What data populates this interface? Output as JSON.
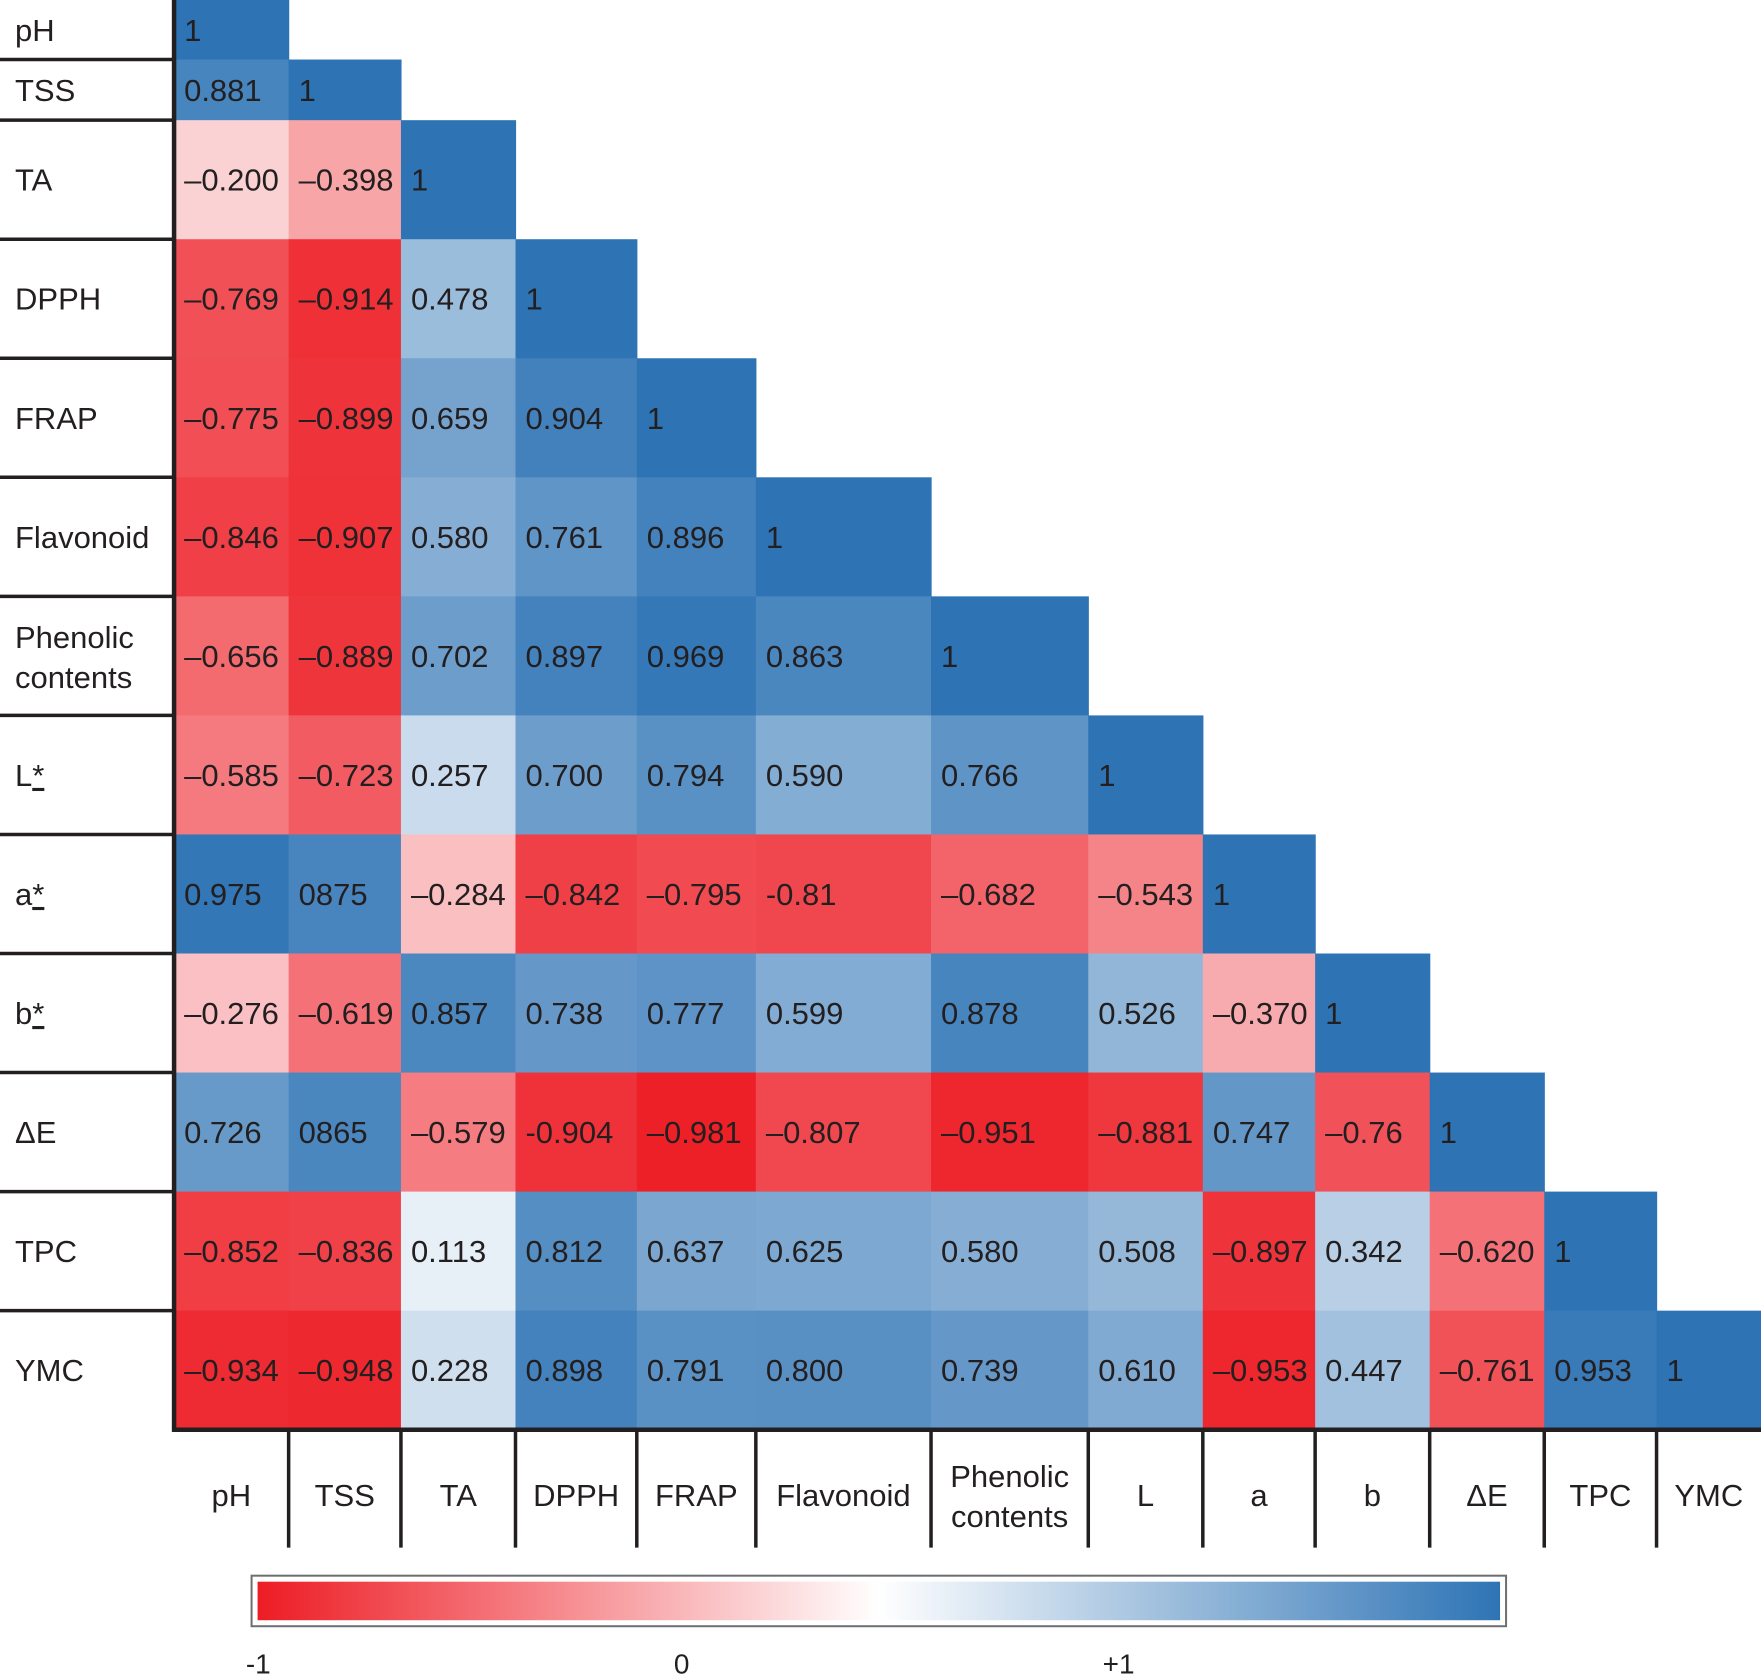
{
  "chart_data": {
    "type": "heatmap",
    "title": "",
    "subtitle": "",
    "xlabel": "",
    "ylabel": "",
    "row_labels": [
      "pH",
      "TSS",
      "TA",
      "DPPH",
      "FRAP",
      "Flavonoid",
      "Phenolic contents",
      "L*",
      "a*",
      "b*",
      "ΔE",
      "TPC",
      "YMC"
    ],
    "col_labels": [
      "pH",
      "TSS",
      "TA",
      "DPPH",
      "FRAP",
      "Flavonoid",
      "Phenolic contents",
      "L",
      "a",
      "b",
      "ΔE",
      "TPC",
      "YMC"
    ],
    "matrix_shape": "lower-triangular",
    "values": [
      [
        1
      ],
      [
        0.881,
        1
      ],
      [
        -0.2,
        -0.398,
        1
      ],
      [
        -0.769,
        -0.914,
        0.478,
        1
      ],
      [
        -0.775,
        -0.899,
        0.659,
        0.904,
        1
      ],
      [
        -0.846,
        -0.907,
        0.58,
        0.761,
        0.896,
        1
      ],
      [
        -0.656,
        -0.889,
        0.702,
        0.897,
        0.969,
        0.863,
        1
      ],
      [
        -0.585,
        -0.723,
        0.257,
        0.7,
        0.794,
        0.59,
        0.766,
        1
      ],
      [
        0.975,
        0.875,
        -0.284,
        -0.842,
        -0.795,
        -0.81,
        -0.682,
        -0.543,
        1
      ],
      [
        -0.276,
        -0.619,
        0.857,
        0.738,
        0.777,
        0.599,
        0.878,
        0.526,
        -0.37,
        1
      ],
      [
        0.726,
        0.865,
        -0.579,
        -0.904,
        -0.981,
        -0.807,
        -0.951,
        -0.881,
        0.747,
        -0.76,
        1
      ],
      [
        -0.852,
        -0.836,
        0.113,
        0.812,
        0.637,
        0.625,
        0.58,
        0.508,
        -0.897,
        0.342,
        -0.62,
        1
      ],
      [
        -0.934,
        -0.948,
        0.228,
        0.898,
        0.791,
        0.8,
        0.739,
        0.61,
        -0.953,
        0.447,
        -0.761,
        0.953,
        1
      ]
    ],
    "cell_text": [
      [
        "1"
      ],
      [
        "0.881",
        "1"
      ],
      [
        "–0.200",
        "–0.398",
        "1"
      ],
      [
        "–0.769",
        "–0.914",
        "0.478",
        "1"
      ],
      [
        "–0.775",
        "–0.899",
        "0.659",
        "0.904",
        "1"
      ],
      [
        "–0.846",
        "–0.907",
        "0.580",
        "0.761",
        "0.896",
        "1"
      ],
      [
        "–0.656",
        "–0.889",
        "0.702",
        "0.897",
        "0.969",
        "0.863",
        "1"
      ],
      [
        "–0.585",
        "–0.723",
        "0.257",
        "0.700",
        "0.794",
        "0.590",
        "0.766",
        "1"
      ],
      [
        "0.975",
        "0875",
        "–0.284",
        "–0.842",
        "–0.795",
        "-0.81",
        "–0.682",
        "–0.543",
        "1"
      ],
      [
        "–0.276",
        "–0.619",
        "0.857",
        "0.738",
        "0.777",
        "0.599",
        "0.878",
        "0.526",
        "–0.370",
        "1"
      ],
      [
        "0.726",
        "0865",
        "–0.579",
        "-0.904",
        "–0.981",
        "–0.807",
        "–0.951",
        "–0.881",
        "0.747",
        "–0.76",
        "1"
      ],
      [
        "–0.852",
        "–0.836",
        "0.113",
        "0.812",
        "0.637",
        "0.625",
        "0.580",
        "0.508",
        "–0.897",
        "0.342",
        "–0.620",
        "1"
      ],
      [
        "–0.934",
        "–0.948",
        "0.228",
        "0.898",
        "0.791",
        "0.800",
        "0.739",
        "0.610",
        "–0.953",
        "0.447",
        "–0.761",
        "0.953",
        "1"
      ]
    ],
    "color_scale": {
      "min": -1,
      "max": 1,
      "ticks": [
        "-1",
        "0",
        "+1"
      ],
      "colors": {
        "negative": "#ed1c24",
        "neutral": "#ffffff",
        "positive": "#2e74b5"
      }
    },
    "legend": "bottom",
    "grid": false
  }
}
